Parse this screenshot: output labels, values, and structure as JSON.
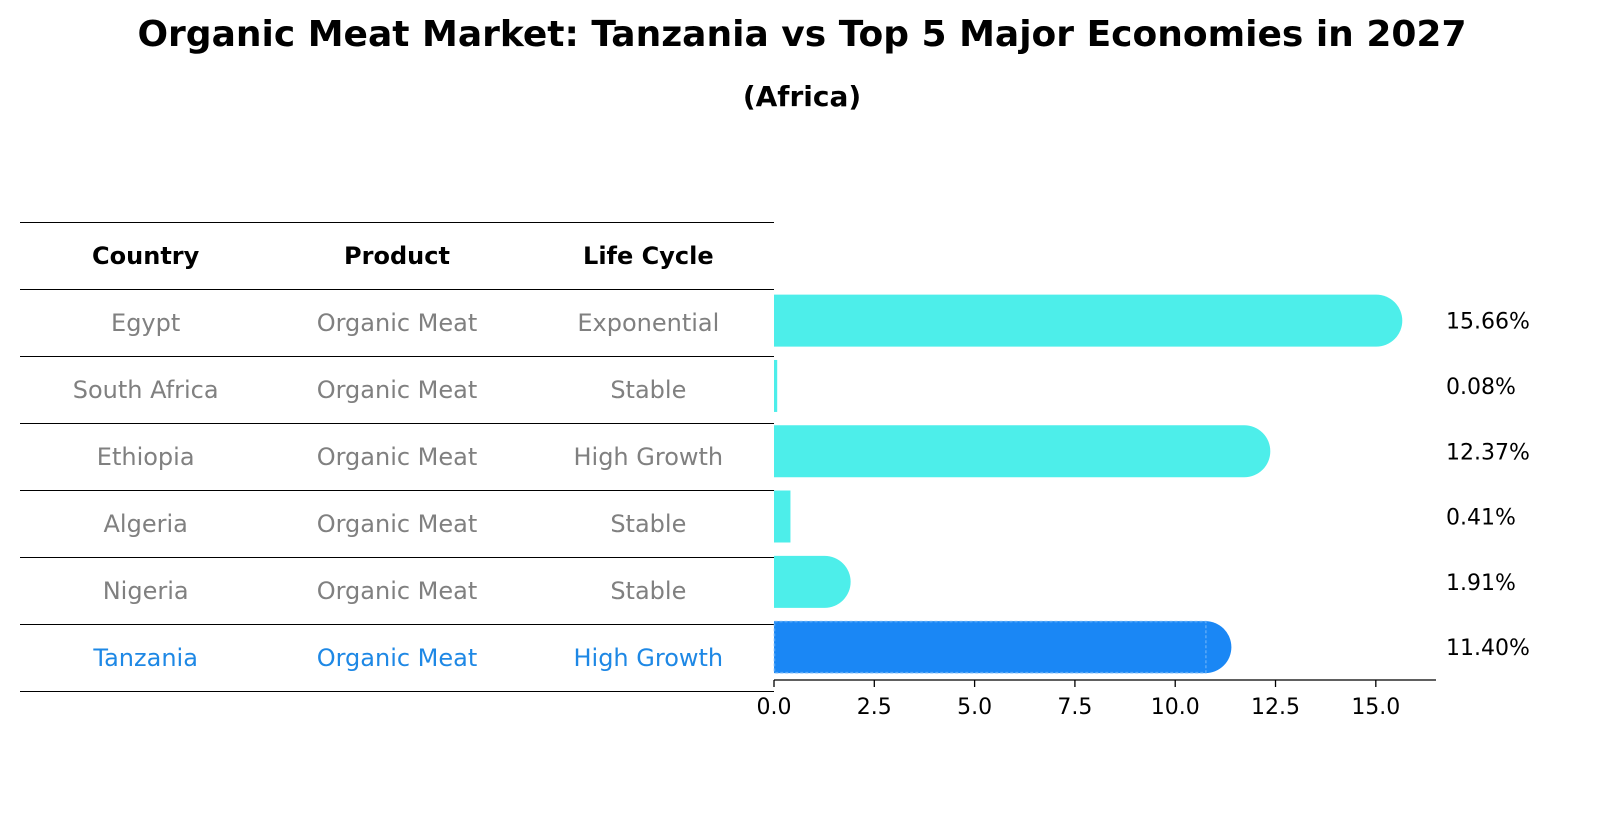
{
  "title": "Organic Meat Market: Tanzania vs Top 5 Major Economies in 2027",
  "subtitle": "(Africa)",
  "table": {
    "headers": [
      "Country",
      "Product",
      "Life Cycle"
    ],
    "rows": [
      {
        "country": "Egypt",
        "product": "Organic Meat",
        "life_cycle": "Exponential"
      },
      {
        "country": "South Africa",
        "product": "Organic Meat",
        "life_cycle": "Stable"
      },
      {
        "country": "Ethiopia",
        "product": "Organic Meat",
        "life_cycle": "High Growth"
      },
      {
        "country": "Algeria",
        "product": "Organic Meat",
        "life_cycle": "Stable"
      },
      {
        "country": "Nigeria",
        "product": "Organic Meat",
        "life_cycle": "Stable"
      },
      {
        "country": "Tanzania",
        "product": "Organic Meat",
        "life_cycle": "High Growth"
      }
    ]
  },
  "colors": {
    "bar": "#4deeea",
    "highlight_bar": "#1a87f5",
    "highlight_text": "#1e88e5",
    "muted_text": "#808080"
  },
  "chart_data": {
    "type": "bar",
    "orientation": "horizontal",
    "categories": [
      "Egypt",
      "South Africa",
      "Ethiopia",
      "Algeria",
      "Nigeria",
      "Tanzania"
    ],
    "values": [
      15.66,
      0.08,
      12.37,
      0.41,
      1.91,
      11.4
    ],
    "value_labels": [
      "15.66%",
      "0.08%",
      "12.37%",
      "0.41%",
      "1.91%",
      "11.40%"
    ],
    "highlight": "Tanzania",
    "xlim": [
      0,
      16.5
    ],
    "xticks": [
      0.0,
      2.5,
      5.0,
      7.5,
      10.0,
      12.5,
      15.0
    ],
    "xtick_labels": [
      "0.0",
      "2.5",
      "5.0",
      "7.5",
      "10.0",
      "12.5",
      "15.0"
    ],
    "xlabel": "",
    "ylabel": ""
  }
}
